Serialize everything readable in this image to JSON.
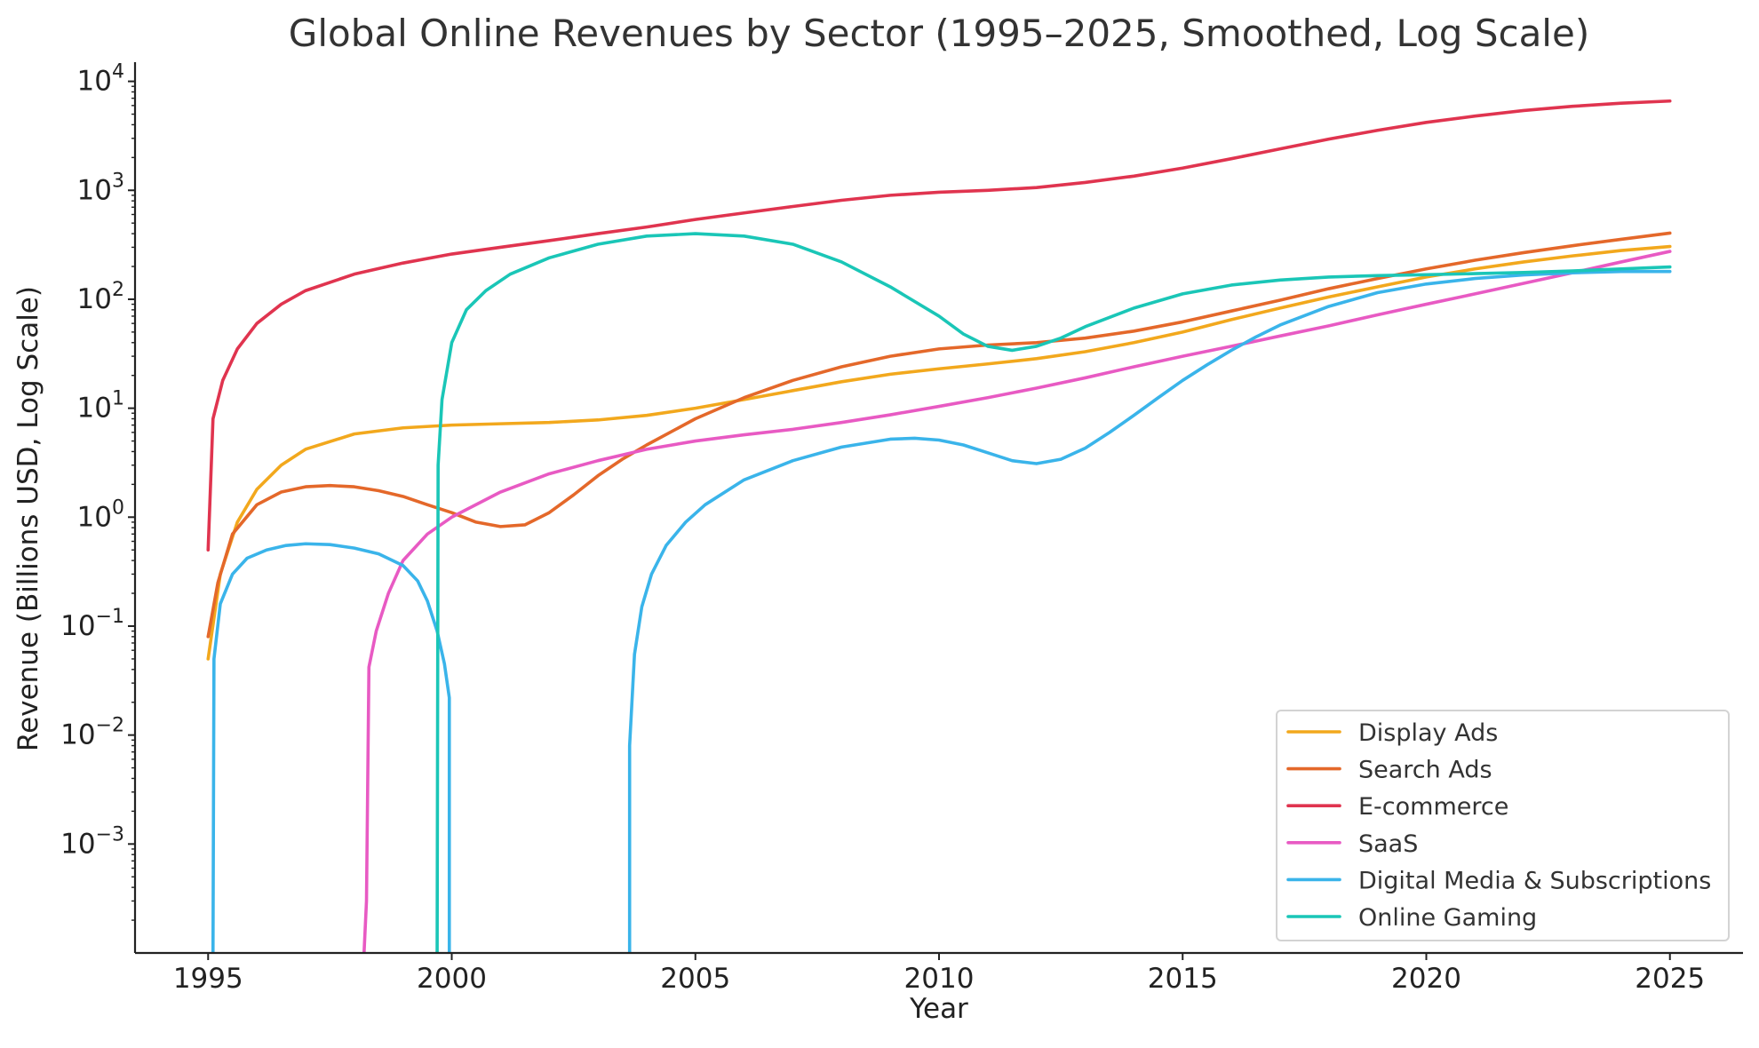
{
  "chart_data": {
    "type": "line",
    "title": "Global Online Revenues by Sector (1995–2025, Smoothed, Log Scale)",
    "xlabel": "Year",
    "ylabel": "Revenue (Billions USD, Log Scale)",
    "xlim": [
      1993.5,
      2026.5
    ],
    "ylim": [
      0.0001,
      15000
    ],
    "yscale": "log",
    "grid": false,
    "legend_position": "lower-right",
    "x_ticks": [
      1995,
      2000,
      2005,
      2010,
      2015,
      2020,
      2025
    ],
    "y_ticks": [
      {
        "value": 0.001,
        "base": "10",
        "exp": "−3"
      },
      {
        "value": 0.01,
        "base": "10",
        "exp": "−2"
      },
      {
        "value": 0.1,
        "base": "10",
        "exp": "−1"
      },
      {
        "value": 1,
        "base": "10",
        "exp": "0"
      },
      {
        "value": 10,
        "base": "10",
        "exp": "1"
      },
      {
        "value": 100,
        "base": "10",
        "exp": "2"
      },
      {
        "value": 1000,
        "base": "10",
        "exp": "3"
      },
      {
        "value": 10000,
        "base": "10",
        "exp": "4"
      }
    ],
    "series": [
      {
        "name": "Display Ads",
        "color": "#f2a81d",
        "points": [
          [
            1995.0,
            0.05
          ],
          [
            1995.25,
            0.3
          ],
          [
            1995.6,
            0.9
          ],
          [
            1996.0,
            1.8
          ],
          [
            1996.5,
            3.0
          ],
          [
            1997.0,
            4.2
          ],
          [
            1998.0,
            5.8
          ],
          [
            1999.0,
            6.6
          ],
          [
            2000.0,
            7.0
          ],
          [
            2001.0,
            7.2
          ],
          [
            2002.0,
            7.4
          ],
          [
            2003.0,
            7.8
          ],
          [
            2004.0,
            8.6
          ],
          [
            2005.0,
            10.0
          ],
          [
            2006.0,
            12.0
          ],
          [
            2007.0,
            14.5
          ],
          [
            2008.0,
            17.5
          ],
          [
            2009.0,
            20.5
          ],
          [
            2010.0,
            23.0
          ],
          [
            2011.0,
            25.5
          ],
          [
            2012.0,
            28.5
          ],
          [
            2013.0,
            33.0
          ],
          [
            2014.0,
            40.0
          ],
          [
            2015.0,
            50.0
          ],
          [
            2016.0,
            65.0
          ],
          [
            2017.0,
            83.0
          ],
          [
            2018.0,
            105.0
          ],
          [
            2019.0,
            130.0
          ],
          [
            2020.0,
            160.0
          ],
          [
            2021.0,
            190.0
          ],
          [
            2022.0,
            220.0
          ],
          [
            2023.0,
            250.0
          ],
          [
            2024.0,
            280.0
          ],
          [
            2025.0,
            305.0
          ]
        ]
      },
      {
        "name": "Search Ads",
        "color": "#e4682a",
        "points": [
          [
            1995.0,
            0.08
          ],
          [
            1995.2,
            0.25
          ],
          [
            1995.5,
            0.7
          ],
          [
            1996.0,
            1.3
          ],
          [
            1996.5,
            1.7
          ],
          [
            1997.0,
            1.9
          ],
          [
            1997.5,
            1.95
          ],
          [
            1998.0,
            1.9
          ],
          [
            1998.5,
            1.75
          ],
          [
            1999.0,
            1.55
          ],
          [
            1999.5,
            1.3
          ],
          [
            2000.0,
            1.1
          ],
          [
            2000.5,
            0.9
          ],
          [
            2001.0,
            0.82
          ],
          [
            2001.5,
            0.85
          ],
          [
            2002.0,
            1.1
          ],
          [
            2002.5,
            1.6
          ],
          [
            2003.0,
            2.4
          ],
          [
            2003.5,
            3.4
          ],
          [
            2004.0,
            4.6
          ],
          [
            2005.0,
            8.0
          ],
          [
            2006.0,
            12.5
          ],
          [
            2007.0,
            18.0
          ],
          [
            2008.0,
            24.0
          ],
          [
            2009.0,
            30.0
          ],
          [
            2010.0,
            35.0
          ],
          [
            2011.0,
            38.0
          ],
          [
            2012.0,
            40.0
          ],
          [
            2013.0,
            44.0
          ],
          [
            2014.0,
            51.0
          ],
          [
            2015.0,
            62.0
          ],
          [
            2016.0,
            78.0
          ],
          [
            2017.0,
            98.0
          ],
          [
            2018.0,
            125.0
          ],
          [
            2019.0,
            155.0
          ],
          [
            2020.0,
            190.0
          ],
          [
            2021.0,
            228.0
          ],
          [
            2022.0,
            268.0
          ],
          [
            2023.0,
            310.0
          ],
          [
            2024.0,
            355.0
          ],
          [
            2025.0,
            405.0
          ]
        ]
      },
      {
        "name": "E-commerce",
        "color": "#e0344f",
        "points": [
          [
            1995.0,
            0.5
          ],
          [
            1995.1,
            8.0
          ],
          [
            1995.3,
            18.0
          ],
          [
            1995.6,
            35.0
          ],
          [
            1996.0,
            60.0
          ],
          [
            1996.5,
            90.0
          ],
          [
            1997.0,
            120.0
          ],
          [
            1998.0,
            170.0
          ],
          [
            1999.0,
            215.0
          ],
          [
            2000.0,
            260.0
          ],
          [
            2001.0,
            300.0
          ],
          [
            2002.0,
            345.0
          ],
          [
            2003.0,
            400.0
          ],
          [
            2004.0,
            460.0
          ],
          [
            2005.0,
            540.0
          ],
          [
            2006.0,
            620.0
          ],
          [
            2007.0,
            710.0
          ],
          [
            2008.0,
            810.0
          ],
          [
            2009.0,
            900.0
          ],
          [
            2010.0,
            960.0
          ],
          [
            2011.0,
            1000.0
          ],
          [
            2012.0,
            1060.0
          ],
          [
            2013.0,
            1180.0
          ],
          [
            2014.0,
            1350.0
          ],
          [
            2015.0,
            1600.0
          ],
          [
            2016.0,
            1950.0
          ],
          [
            2017.0,
            2400.0
          ],
          [
            2018.0,
            2950.0
          ],
          [
            2019.0,
            3550.0
          ],
          [
            2020.0,
            4200.0
          ],
          [
            2021.0,
            4800.0
          ],
          [
            2022.0,
            5400.0
          ],
          [
            2023.0,
            5900.0
          ],
          [
            2024.0,
            6300.0
          ],
          [
            2025.0,
            6600.0
          ]
        ]
      },
      {
        "name": "SaaS",
        "color": "#e85ac3",
        "points": [
          [
            1998.2,
            0.0001
          ],
          [
            1998.25,
            0.0003
          ],
          [
            1998.3,
            0.042
          ],
          [
            1998.45,
            0.09
          ],
          [
            1998.7,
            0.2
          ],
          [
            1999.0,
            0.4
          ],
          [
            1999.5,
            0.7
          ],
          [
            2000.0,
            1.0
          ],
          [
            2001.0,
            1.7
          ],
          [
            2002.0,
            2.5
          ],
          [
            2003.0,
            3.3
          ],
          [
            2004.0,
            4.2
          ],
          [
            2005.0,
            5.0
          ],
          [
            2006.0,
            5.7
          ],
          [
            2007.0,
            6.4
          ],
          [
            2008.0,
            7.4
          ],
          [
            2009.0,
            8.7
          ],
          [
            2010.0,
            10.4
          ],
          [
            2011.0,
            12.5
          ],
          [
            2012.0,
            15.3
          ],
          [
            2013.0,
            19.0
          ],
          [
            2014.0,
            24.0
          ],
          [
            2015.0,
            30.0
          ],
          [
            2016.0,
            37.0
          ],
          [
            2017.0,
            46.0
          ],
          [
            2018.0,
            57.0
          ],
          [
            2019.0,
            72.0
          ],
          [
            2020.0,
            90.0
          ],
          [
            2021.0,
            112.0
          ],
          [
            2022.0,
            140.0
          ],
          [
            2023.0,
            175.0
          ],
          [
            2024.0,
            220.0
          ],
          [
            2025.0,
            275.0
          ]
        ]
      },
      {
        "name": "Digital Media & Subscriptions",
        "color": "#3ab4ea",
        "segments": [
          [
            [
              1995.1,
              0.0001
            ],
            [
              1995.12,
              0.05
            ],
            [
              1995.25,
              0.16
            ],
            [
              1995.5,
              0.3
            ],
            [
              1995.8,
              0.42
            ],
            [
              1996.2,
              0.5
            ],
            [
              1996.6,
              0.55
            ],
            [
              1997.0,
              0.57
            ],
            [
              1997.5,
              0.56
            ],
            [
              1998.0,
              0.52
            ],
            [
              1998.5,
              0.46
            ],
            [
              1999.0,
              0.36
            ],
            [
              1999.3,
              0.26
            ],
            [
              1999.5,
              0.17
            ],
            [
              1999.7,
              0.09
            ],
            [
              1999.85,
              0.045
            ],
            [
              1999.95,
              0.022
            ],
            [
              1999.95,
              0.0001
            ]
          ],
          [
            [
              2003.65,
              0.0001
            ],
            [
              2003.65,
              0.008
            ],
            [
              2003.75,
              0.055
            ],
            [
              2003.9,
              0.15
            ],
            [
              2004.1,
              0.3
            ],
            [
              2004.4,
              0.55
            ],
            [
              2004.8,
              0.9
            ],
            [
              2005.2,
              1.3
            ],
            [
              2006.0,
              2.2
            ],
            [
              2007.0,
              3.3
            ],
            [
              2008.0,
              4.4
            ],
            [
              2009.0,
              5.2
            ],
            [
              2009.5,
              5.3
            ],
            [
              2010.0,
              5.1
            ],
            [
              2010.5,
              4.6
            ],
            [
              2011.0,
              3.9
            ],
            [
              2011.5,
              3.3
            ],
            [
              2012.0,
              3.1
            ],
            [
              2012.5,
              3.4
            ],
            [
              2013.0,
              4.3
            ],
            [
              2013.5,
              6.0
            ],
            [
              2014.0,
              8.6
            ],
            [
              2014.5,
              12.5
            ],
            [
              2015.0,
              18.0
            ],
            [
              2015.5,
              25.0
            ],
            [
              2016.0,
              34.0
            ],
            [
              2016.5,
              45.0
            ],
            [
              2017.0,
              58.0
            ],
            [
              2018.0,
              86.0
            ],
            [
              2019.0,
              115.0
            ],
            [
              2020.0,
              138.0
            ],
            [
              2021.0,
              155.0
            ],
            [
              2022.0,
              167.0
            ],
            [
              2023.0,
              175.0
            ],
            [
              2024.0,
              180.0
            ],
            [
              2025.0,
              180.0
            ]
          ]
        ]
      },
      {
        "name": "Online Gaming",
        "color": "#1ac6b7",
        "points": [
          [
            1999.7,
            0.0001
          ],
          [
            1999.72,
            3.0
          ],
          [
            1999.8,
            12.0
          ],
          [
            2000.0,
            40.0
          ],
          [
            2000.3,
            80.0
          ],
          [
            2000.7,
            120.0
          ],
          [
            2001.2,
            170.0
          ],
          [
            2002.0,
            240.0
          ],
          [
            2003.0,
            320.0
          ],
          [
            2004.0,
            380.0
          ],
          [
            2005.0,
            400.0
          ],
          [
            2006.0,
            380.0
          ],
          [
            2007.0,
            320.0
          ],
          [
            2008.0,
            220.0
          ],
          [
            2009.0,
            130.0
          ],
          [
            2010.0,
            70.0
          ],
          [
            2010.5,
            48.0
          ],
          [
            2011.0,
            37.0
          ],
          [
            2011.5,
            34.0
          ],
          [
            2012.0,
            37.0
          ],
          [
            2012.5,
            44.0
          ],
          [
            2013.0,
            56.0
          ],
          [
            2014.0,
            83.0
          ],
          [
            2015.0,
            112.0
          ],
          [
            2016.0,
            135.0
          ],
          [
            2017.0,
            150.0
          ],
          [
            2018.0,
            160.0
          ],
          [
            2019.0,
            165.0
          ],
          [
            2020.0,
            168.0
          ],
          [
            2021.0,
            172.0
          ],
          [
            2022.0,
            176.0
          ],
          [
            2023.0,
            182.0
          ],
          [
            2024.0,
            190.0
          ],
          [
            2025.0,
            198.0
          ]
        ]
      }
    ]
  }
}
